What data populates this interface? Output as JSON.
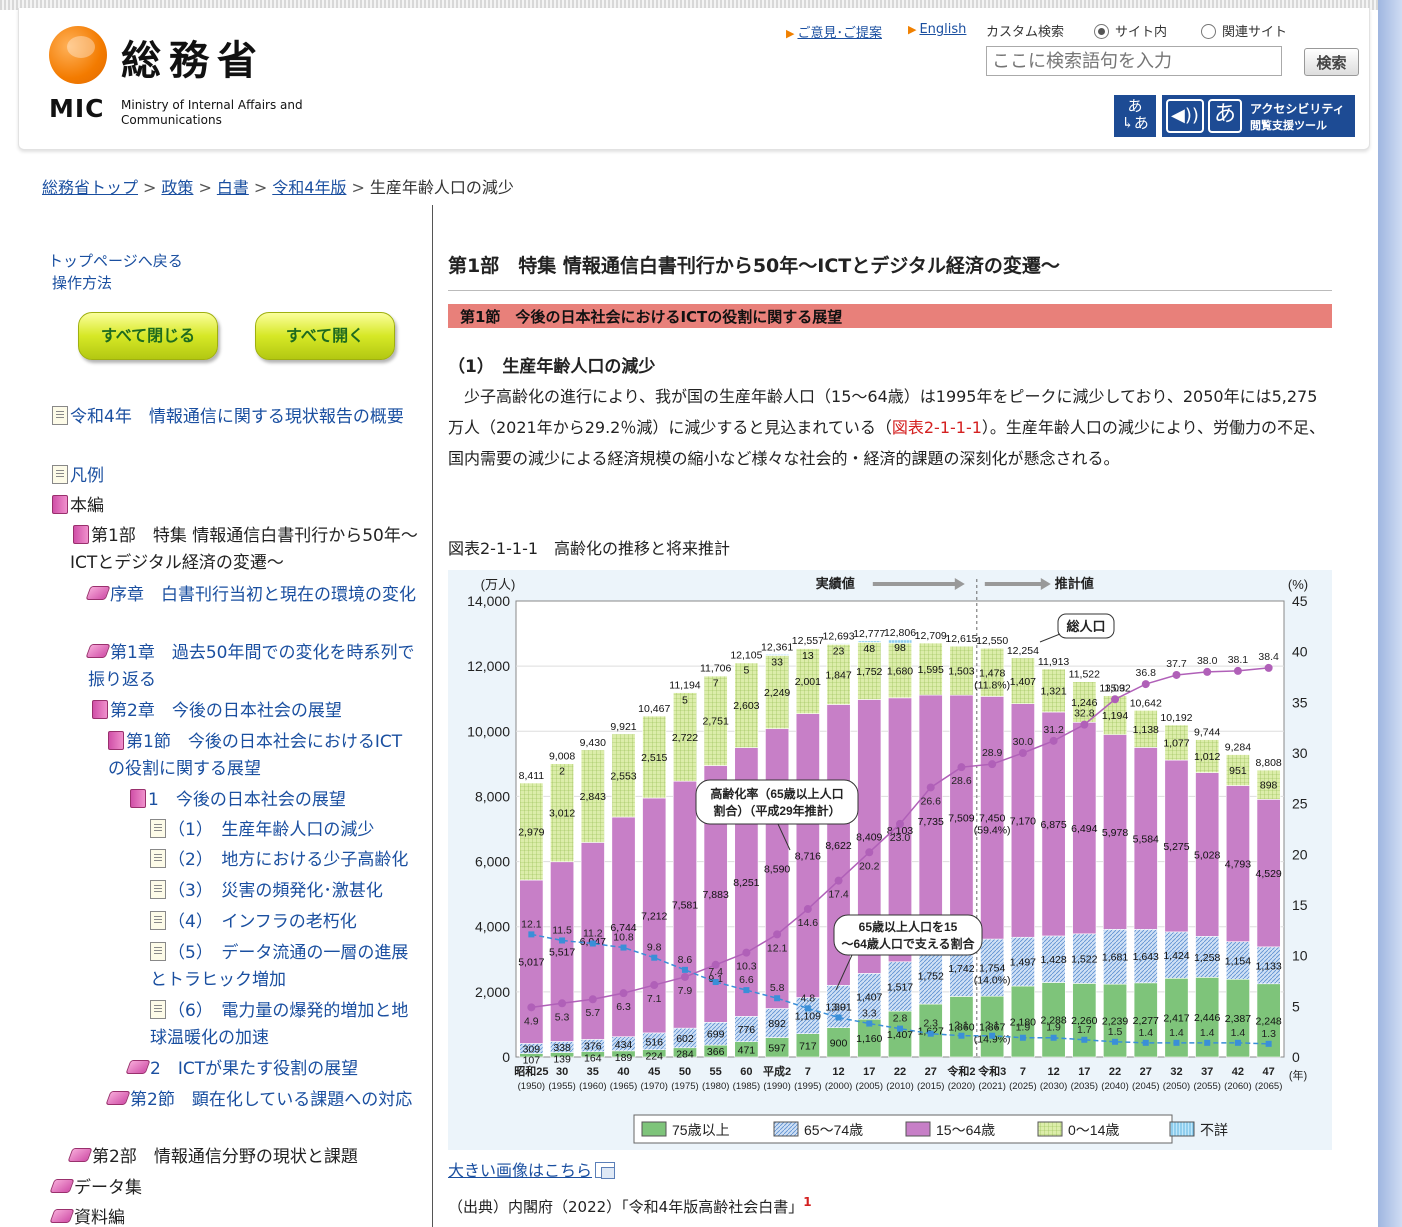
{
  "header": {
    "logo_name": "総務省",
    "logo_abbr": "MIC",
    "logo_en": "Ministry of Internal Affairs and Communications",
    "opinion_link": "ご意見･ご提案",
    "english_link": "English",
    "custom_search_label": "カスタム検索",
    "radio_site": "サイト内",
    "radio_related": "関連サイト",
    "search_placeholder": "ここに検索語句を入力",
    "search_button": "検索",
    "ruby_button": "あ/あ",
    "accessibility_title": "アクセシビリティ",
    "accessibility_sub": "閲覧支援ツール"
  },
  "breadcrumb": {
    "items": [
      "総務省トップ",
      "政策",
      "白書",
      "令和4年版"
    ],
    "current": "生産年齢人口の減少"
  },
  "sidebar": {
    "back_link": "トップページへ戻る",
    "howto_link": "操作方法",
    "close_all": "すべて閉じる",
    "open_all": "すべて開く",
    "tree": [
      "令和4年　情報通信に関する現状報告の概要",
      "凡例",
      "本編",
      "第1部　特集 情報通信白書刊行から50年〜ICTとデジタル経済の変遷〜",
      "序章　白書刊行当初と現在の環境の変化",
      "第1章　過去50年間での変化を時系列で振り返る",
      "第2章　今後の日本社会の展望",
      "第1節　今後の日本社会におけるICTの役割に関する展望",
      "1　今後の日本社会の展望",
      "（1）　生産年齢人口の減少",
      "（2）　地方における少子高齢化",
      "（3）　災害の頻発化･激甚化",
      "（4）　インフラの老朽化",
      "（5）　データ流通の一層の進展とトラヒック増加",
      "（6）　電力量の爆発的増加と地球温暖化の加速",
      "2　ICTが果たす役割の展望",
      "第2節　顕在化している課題への対応",
      "第2部　情報通信分野の現状と課題",
      "データ集",
      "資料編"
    ]
  },
  "main": {
    "title": "第1部　特集 情報通信白書刊行から50年〜ICTとデジタル経済の変遷〜",
    "section": "第1節　今後の日本社会におけるICTの役割に関する展望",
    "sub_heading": "（1）　生産年齢人口の減少",
    "body_pre": "少子高齢化の進行により、我が国の生産年齢人口（15〜64歳）は1995年をピークに減少しており、2050年には5,275万人（2021年から29.2％減）に減少すると見込まれている（",
    "body_link": "図表2-1-1-1",
    "body_post": "）。生産年齢人口の減少により、労働力の不足、国内需要の減少による経済規模の縮小など様々な社会的・経済的課題の深刻化が懸念される。",
    "figure_caption": "図表2-1-1-1　高齢化の推移と将来推計",
    "large_image_link": "大きい画像はこちら",
    "source": "（出典）内閣府（2022）「令和4年版高齢社会白書」",
    "source_note": "1"
  },
  "chart_data": {
    "type": "bar",
    "stacked": true,
    "categories_era": [
      "昭和25",
      "30",
      "35",
      "40",
      "45",
      "50",
      "55",
      "60",
      "平成2",
      "7",
      "12",
      "17",
      "22",
      "27",
      "令和2",
      "令和3",
      "7",
      "12",
      "17",
      "22",
      "27",
      "32",
      "37",
      "42",
      "47"
    ],
    "categories_year": [
      "(1950)",
      "(1955)",
      "(1960)",
      "(1965)",
      "(1970)",
      "(1975)",
      "(1980)",
      "(1985)",
      "(1990)",
      "(1995)",
      "(2000)",
      "(2005)",
      "(2010)",
      "(2015)",
      "(2020)",
      "(2021)",
      "(2025)",
      "(2030)",
      "(2035)",
      "(2040)",
      "(2045)",
      "(2050)",
      "(2055)",
      "(2060)",
      "(2065)"
    ],
    "y_left_unit": "(万人)",
    "y_right_unit": "(%)",
    "x_unit": "(年)",
    "ylim_left": [
      0,
      14000
    ],
    "ylim_right": [
      0,
      45
    ],
    "y_left_ticks": [
      "0",
      "2,000",
      "4,000",
      "6,000",
      "8,000",
      "10,000",
      "12,000",
      "14,000"
    ],
    "y_right_ticks": [
      "0",
      "5",
      "10",
      "15",
      "20",
      "25",
      "30",
      "35",
      "40",
      "45"
    ],
    "projection_start_index": 15,
    "actual_label": "実績値",
    "projection_label": "推計値",
    "series": [
      {
        "name": "75歳以上",
        "color": "#7ec47a",
        "values": [
          107,
          139,
          164,
          189,
          224,
          284,
          366,
          471,
          597,
          717,
          900,
          1160,
          1407,
          1627,
          1860,
          1867,
          2180,
          2288,
          2260,
          2239,
          2277,
          2417,
          2446,
          2387,
          2248
        ],
        "labels": [
          "107",
          "139",
          "164",
          "189",
          "224",
          "284",
          "366",
          "471",
          "597",
          "717",
          "900",
          "1,160",
          "1,407",
          "1,627",
          "1,860",
          "1,867\n(14.9%)",
          "2,180",
          "2,288",
          "2,260",
          "2,239",
          "2,277",
          "2,417",
          "2,446",
          "2,387",
          "2,248"
        ]
      },
      {
        "name": "65～74歳",
        "color": "#a8c8ec",
        "values": [
          309,
          338,
          376,
          434,
          516,
          602,
          699,
          776,
          892,
          1109,
          1301,
          1407,
          1517,
          1752,
          1742,
          1754,
          1497,
          1428,
          1522,
          1681,
          1643,
          1424,
          1258,
          1154,
          1133
        ],
        "labels": [
          "309",
          "338",
          "376",
          "434",
          "516",
          "602",
          "699",
          "776",
          "892",
          "1,109",
          "1,301",
          "1,407",
          "1,517",
          "1,752",
          "1,742",
          "1,754\n(14.0%)",
          "1,497",
          "1,428",
          "1,522",
          "1,681",
          "1,643",
          "1,424",
          "1,258",
          "1,154",
          "1,133"
        ]
      },
      {
        "name": "15～64歳",
        "color": "#c77fc7",
        "values": [
          5017,
          5517,
          6047,
          6744,
          7212,
          7581,
          7883,
          8251,
          8590,
          8716,
          8622,
          8409,
          8103,
          7735,
          7509,
          7450,
          7170,
          6875,
          6494,
          5978,
          5584,
          5275,
          5028,
          4793,
          4529
        ],
        "labels": [
          "5,017",
          "5,517",
          "6,047",
          "6,744",
          "7,212",
          "7,581",
          "7,883",
          "8,251",
          "8,590",
          "8,716",
          "8,622",
          "8,409",
          "8,103",
          "7,735",
          "7,509",
          "7,450\n(59.4%)",
          "7,170",
          "6,875",
          "6,494",
          "5,978",
          "5,584",
          "5,275",
          "5,028",
          "4,793",
          "4,529"
        ]
      },
      {
        "name": "0～14歳",
        "color": "#d9ec9a",
        "values": [
          2979,
          3012,
          2843,
          2553,
          2515,
          2722,
          2751,
          2603,
          2249,
          2001,
          1847,
          1752,
          1680,
          1595,
          1503,
          1478,
          1407,
          1321,
          1246,
          1194,
          1138,
          1077,
          1012,
          951,
          898
        ],
        "labels": [
          "2,979",
          "3,012",
          "2,843",
          "2,553",
          "2,515",
          "2,722",
          "2,751",
          "2,603",
          "2,249",
          "2,001",
          "1,847",
          "1,752",
          "1,680",
          "1,595",
          "1,503",
          "1,478\n(11.8%)",
          "1,407",
          "1,321",
          "1,246",
          "1,194",
          "1,138",
          "1,077",
          "1,012",
          "951",
          "898"
        ]
      },
      {
        "name": "不詳",
        "color": "#8fd0f0",
        "values": [
          0,
          2,
          0,
          0,
          0,
          5,
          7,
          5,
          33,
          13,
          23,
          48,
          98,
          0,
          0,
          0,
          0,
          0,
          0,
          0,
          0,
          0,
          0,
          0,
          0
        ],
        "labels": [
          "0",
          "2",
          "0",
          "0",
          "0",
          "5",
          "7",
          "5",
          "33",
          "13",
          "23",
          "48",
          "98",
          "",
          "",
          "",
          "",
          "",
          "",
          "",
          "",
          "",
          "",
          "",
          ""
        ]
      }
    ],
    "totals": [
      8411,
      9008,
      9430,
      9921,
      10467,
      11194,
      11706,
      12105,
      12361,
      12557,
      12693,
      12777,
      12806,
      12709,
      12615,
      12550,
      12254,
      11913,
      11522,
      11092,
      10642,
      10192,
      9744,
      9284,
      8808
    ],
    "total_labels": [
      "8,411",
      "9,008",
      "9,430",
      "9,921",
      "10,467",
      "11,194",
      "11,706",
      "12,105",
      "12,361",
      "12,557",
      "12,693",
      "12,777",
      "12,806",
      "12,709",
      "12,615",
      "12,550",
      "12,254",
      "11,913",
      "11,522",
      "11,092",
      "10,642",
      "10,192",
      "9,744",
      "9,284",
      "8,808"
    ],
    "aging_rate": [
      4.9,
      5.3,
      5.7,
      6.3,
      7.1,
      7.9,
      9.1,
      10.3,
      12.1,
      14.6,
      17.4,
      20.2,
      23.0,
      26.6,
      28.6,
      28.9,
      30.0,
      31.2,
      32.8,
      35.3,
      36.8,
      37.7,
      38.0,
      38.1,
      38.4
    ],
    "support_ratio": [
      12.1,
      11.5,
      11.2,
      10.8,
      9.8,
      8.6,
      7.4,
      6.6,
      5.8,
      4.8,
      3.9,
      3.3,
      2.8,
      2.3,
      2.1,
      2.1,
      1.9,
      1.9,
      1.7,
      1.5,
      1.4,
      1.4,
      1.4,
      1.4,
      1.3
    ],
    "callouts": {
      "total": "総人口",
      "aging": "高齢化率（65歳以上人口割合）（平成29年推計）",
      "support": "65歳以上人口を15～64歳人口で支える割合"
    }
  }
}
